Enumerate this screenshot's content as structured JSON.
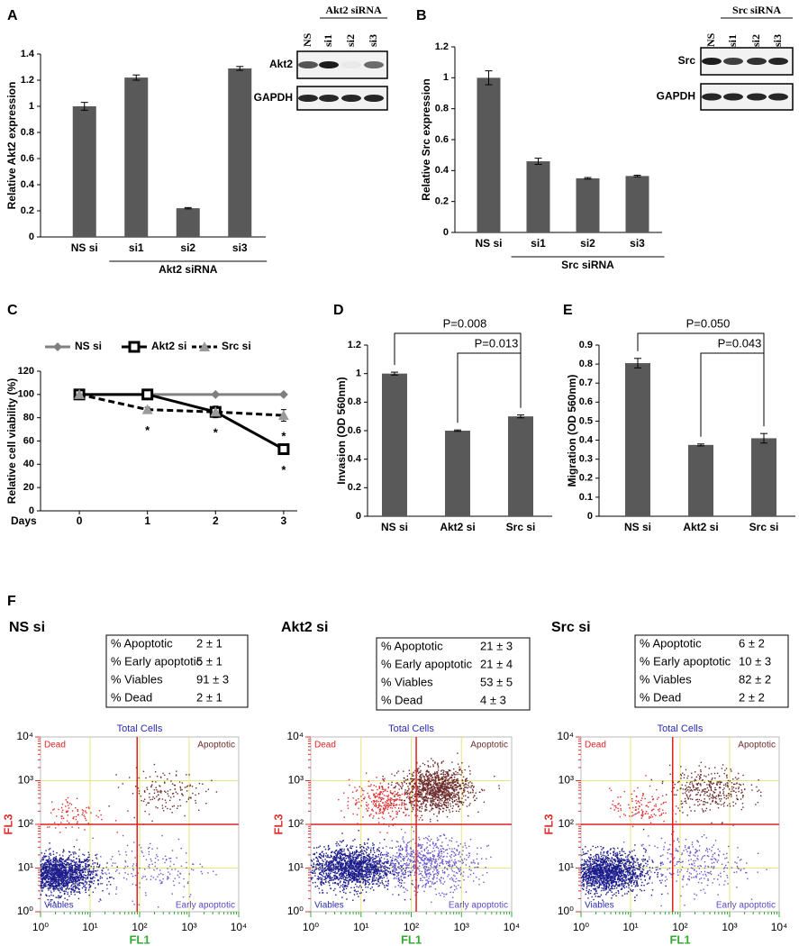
{
  "chart_data": [
    {
      "type": "bar",
      "label": "A",
      "ylabel": "Relative  Akt2 expression",
      "categories": [
        "NS si",
        "si1",
        "si2",
        "si3"
      ],
      "values": [
        1.0,
        1.22,
        0.22,
        1.29
      ],
      "errors": [
        0.03,
        0.02,
        0.005,
        0.015
      ],
      "color": "#595959",
      "ylim": [
        0,
        1.4
      ],
      "yticks": [
        0,
        0.2,
        0.4,
        0.6,
        0.8,
        1,
        1.2,
        1.4
      ],
      "group_label": "Akt2 siRNA"
    },
    {
      "type": "bar",
      "label": "B",
      "ylabel": "Relative  Src expression",
      "categories": [
        "NS si",
        "si1",
        "si2",
        "si3"
      ],
      "values": [
        1.0,
        0.46,
        0.35,
        0.365
      ],
      "errors": [
        0.045,
        0.02,
        0.005,
        0.005
      ],
      "color": "#595959",
      "ylim": [
        0,
        1.2
      ],
      "yticks": [
        0,
        0.2,
        0.4,
        0.6,
        0.8,
        1,
        1.2
      ],
      "group_label": "Src siRNA"
    },
    {
      "type": "line",
      "label": "C",
      "ylabel": "Relative cell viability (%)",
      "xlabel": "Days",
      "x": [
        0,
        1,
        2,
        3
      ],
      "xlim": [
        -0.57,
        3.2
      ],
      "xticks": [
        0,
        1,
        2,
        3
      ],
      "ylim": [
        0,
        120
      ],
      "yticks": [
        0,
        20,
        40,
        60,
        80,
        100,
        120
      ],
      "series": [
        {
          "name": "NS si",
          "color": "#808080",
          "marker": "diamond",
          "dashed": false,
          "values": [
            100,
            100,
            100,
            100
          ],
          "errors": [
            0,
            0,
            0,
            0
          ]
        },
        {
          "name": "Akt2 si",
          "color": "#000000",
          "marker": "square",
          "dashed": false,
          "values": [
            100,
            100,
            85,
            53
          ],
          "errors": [
            0,
            2,
            5,
            2
          ]
        },
        {
          "name": "Src si",
          "color": "#000000",
          "marker": "triangle",
          "dashed": true,
          "values": [
            100,
            87,
            85,
            82
          ],
          "errors": [
            0,
            2,
            3,
            5
          ]
        }
      ],
      "annotations": [
        {
          "label": "*",
          "x": 1,
          "series": 2
        },
        {
          "label": "*",
          "x": 2,
          "series": 1
        },
        {
          "label": "*",
          "x": 3,
          "series": 2
        },
        {
          "label": "*",
          "x": 3,
          "series": 1
        }
      ]
    },
    {
      "type": "bar",
      "label": "D",
      "ylabel": "Invasion (OD 560nm)",
      "categories": [
        "NS si",
        "Akt2 si",
        "Src si"
      ],
      "values": [
        1.0,
        0.6,
        0.7
      ],
      "errors": [
        0.01,
        0.005,
        0.01
      ],
      "color": "#595959",
      "ylim": [
        0,
        1.2
      ],
      "yticks": [
        0,
        0.2,
        0.4,
        0.6,
        0.8,
        1,
        1.2
      ],
      "comparisons": [
        {
          "label": "P=0.008",
          "from": 0,
          "to": 2
        },
        {
          "label": "P=0.013",
          "from": 1,
          "to": 2
        }
      ]
    },
    {
      "type": "bar",
      "label": "E",
      "ylabel": "Migration (OD 560nm)",
      "categories": [
        "NS si",
        "Akt2 si",
        "Src si"
      ],
      "values": [
        0.805,
        0.375,
        0.41
      ],
      "errors": [
        0.025,
        0.005,
        0.025
      ],
      "color": "#595959",
      "ylim": [
        0,
        0.9
      ],
      "yticks": [
        0,
        0.1,
        0.2,
        0.3,
        0.4,
        0.5,
        0.6,
        0.7,
        0.8,
        0.9
      ],
      "comparisons": [
        {
          "label": "P=0.050",
          "from": 0,
          "to": 2
        },
        {
          "label": "P=0.043",
          "from": 1,
          "to": 2
        }
      ]
    }
  ],
  "blots": [
    {
      "header": "Akt2 siRNA",
      "lanes": [
        "NS",
        "si1",
        "si2",
        "si3"
      ],
      "rows": [
        "Akt2",
        "GAPDH"
      ]
    },
    {
      "header": "Src siRNA",
      "lanes": [
        "NS",
        "si1",
        "si2",
        "si3"
      ],
      "rows": [
        "Src",
        "GAPDH"
      ]
    }
  ],
  "flow": {
    "label": "F",
    "lim": [
      1,
      10000
    ],
    "log": true,
    "ticks": [
      {
        "value": 1,
        "label": "10⁰"
      },
      {
        "value": 10,
        "label": "10¹"
      },
      {
        "value": 100,
        "label": "10²"
      },
      {
        "value": 1000,
        "label": "10³"
      },
      {
        "value": 10000,
        "label": "10⁴"
      }
    ],
    "xlabel": "FL1",
    "ylabel": "FL3",
    "plot_title": "Total Cells",
    "quadrants": {
      "top_left": "Dead",
      "top_right": "Apoptotic",
      "bottom_left": "Viables",
      "bottom_right": "Early apoptotic"
    },
    "panels": [
      {
        "title": "NS si",
        "table": [
          [
            "% Apoptotic",
            "2 ± 1"
          ],
          [
            "% Early apoptotic",
            "5 ± 1"
          ],
          [
            "% Viables",
            "91 ± 3"
          ],
          [
            "% Dead",
            "2 ± 1"
          ]
        ]
      },
      {
        "title": "Akt2 si",
        "table": [
          [
            "% Apoptotic",
            "21 ± 3"
          ],
          [
            "% Early apoptotic",
            "21 ± 4"
          ],
          [
            "% Viables",
            "53 ± 5"
          ],
          [
            "% Dead",
            "4 ± 3"
          ]
        ]
      },
      {
        "title": "Src si",
        "table": [
          [
            "% Apoptotic",
            "6 ± 2"
          ],
          [
            "% Early apoptotic",
            "10 ± 3"
          ],
          [
            "% Viables",
            "82 ± 2"
          ],
          [
            "% Dead",
            "2 ± 2"
          ]
        ]
      }
    ]
  }
}
